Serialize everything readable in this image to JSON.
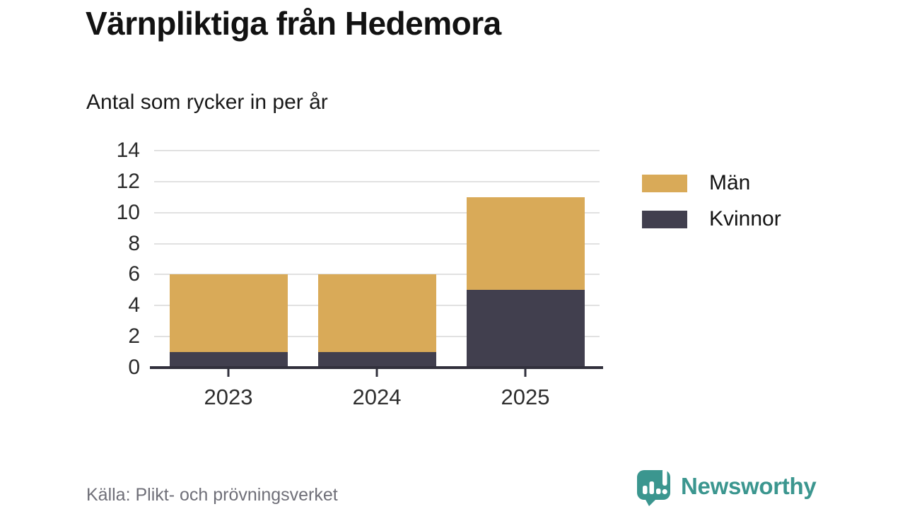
{
  "title": "Värnpliktiga från Hedemora",
  "subtitle": "Antal som rycker in per år",
  "source": "Källa: Plikt- och prövningsverket",
  "brand": {
    "name": "Newsworthy",
    "color": "#3b968f",
    "icon": "newsworthy-speech-bubble-chart-icon"
  },
  "chart_data": {
    "type": "bar",
    "stacked": true,
    "title": "Värnpliktiga från Hedemora",
    "subtitle_as_ylabel": "Antal som rycker in per år",
    "xlabel": "",
    "ylabel": "",
    "categories": [
      "2023",
      "2024",
      "2025"
    ],
    "series": [
      {
        "name": "Män",
        "color": "#d9aa58",
        "values": [
          5,
          5,
          6
        ]
      },
      {
        "name": "Kvinnor",
        "color": "#413f4e",
        "values": [
          1,
          1,
          5
        ]
      }
    ],
    "stack_bottom_to_top": [
      "Kvinnor",
      "Män"
    ],
    "totals": [
      6,
      6,
      11
    ],
    "ylim": [
      0,
      14
    ],
    "yticks": [
      0,
      2,
      4,
      6,
      8,
      10,
      12,
      14
    ],
    "grid": true,
    "gridline_color": "#e1e1e1",
    "axis_color": "#31303c",
    "legend_position": "right"
  }
}
